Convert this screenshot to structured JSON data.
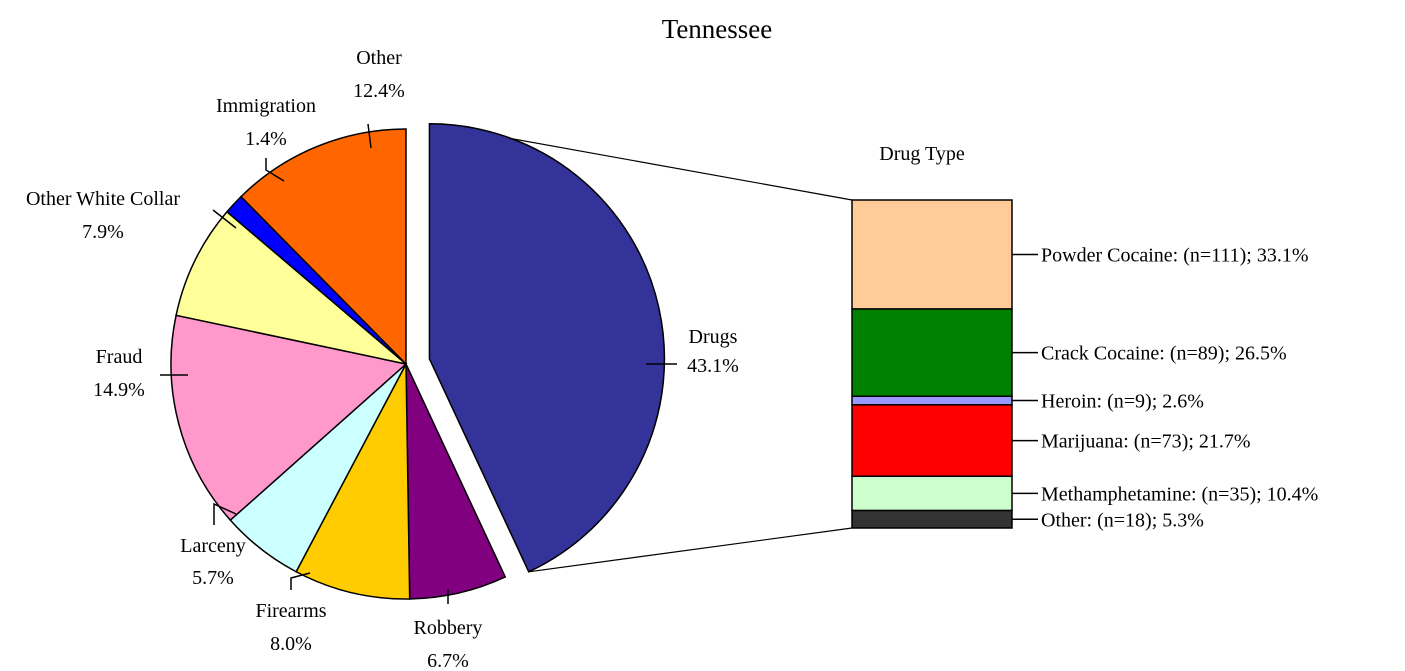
{
  "chart_data": [
    {
      "type": "pie",
      "title": "Tennessee",
      "slices": [
        {
          "name": "Drugs",
          "value": 43.1,
          "label": "43.1%",
          "color": "#333399",
          "exploded": true
        },
        {
          "name": "Robbery",
          "value": 6.7,
          "label": "6.7%",
          "color": "#800080"
        },
        {
          "name": "Firearms",
          "value": 8.0,
          "label": "8.0%",
          "color": "#FFCC00"
        },
        {
          "name": "Larceny",
          "value": 5.7,
          "label": "5.7%",
          "color": "#CCFFFF"
        },
        {
          "name": "Fraud",
          "value": 14.9,
          "label": "14.9%",
          "color": "#FF99CC"
        },
        {
          "name": "Other White Collar",
          "value": 7.9,
          "label": "7.9%",
          "color": "#FFFF99"
        },
        {
          "name": "Immigration",
          "value": 1.4,
          "label": "1.4%",
          "color": "#0000FF"
        },
        {
          "name": "Other",
          "value": 12.4,
          "label": "12.4%",
          "color": "#FF6600"
        }
      ]
    },
    {
      "type": "bar",
      "stacked": true,
      "title": "Drug Type",
      "series": [
        {
          "name": "Powder Cocaine",
          "n": 111,
          "value": 33.1,
          "label": "Powder Cocaine: (n=111); 33.1%",
          "color": "#FFCC99"
        },
        {
          "name": "Crack Cocaine",
          "n": 89,
          "value": 26.5,
          "label": "Crack Cocaine: (n=89); 26.5%",
          "color": "#008000"
        },
        {
          "name": "Heroin",
          "n": 9,
          "value": 2.6,
          "label": "Heroin: (n=9); 2.6%",
          "color": "#9999FF"
        },
        {
          "name": "Marijuana",
          "n": 73,
          "value": 21.7,
          "label": "Marijuana: (n=73); 21.7%",
          "color": "#FF0000"
        },
        {
          "name": "Methamphetamine",
          "n": 35,
          "value": 10.4,
          "label": "Methamphetamine: (n=35); 10.4%",
          "color": "#CCFFCC"
        },
        {
          "name": "Other",
          "n": 18,
          "value": 5.3,
          "label": "Other: (n=18); 5.3%",
          "color": "#333333"
        }
      ]
    }
  ]
}
